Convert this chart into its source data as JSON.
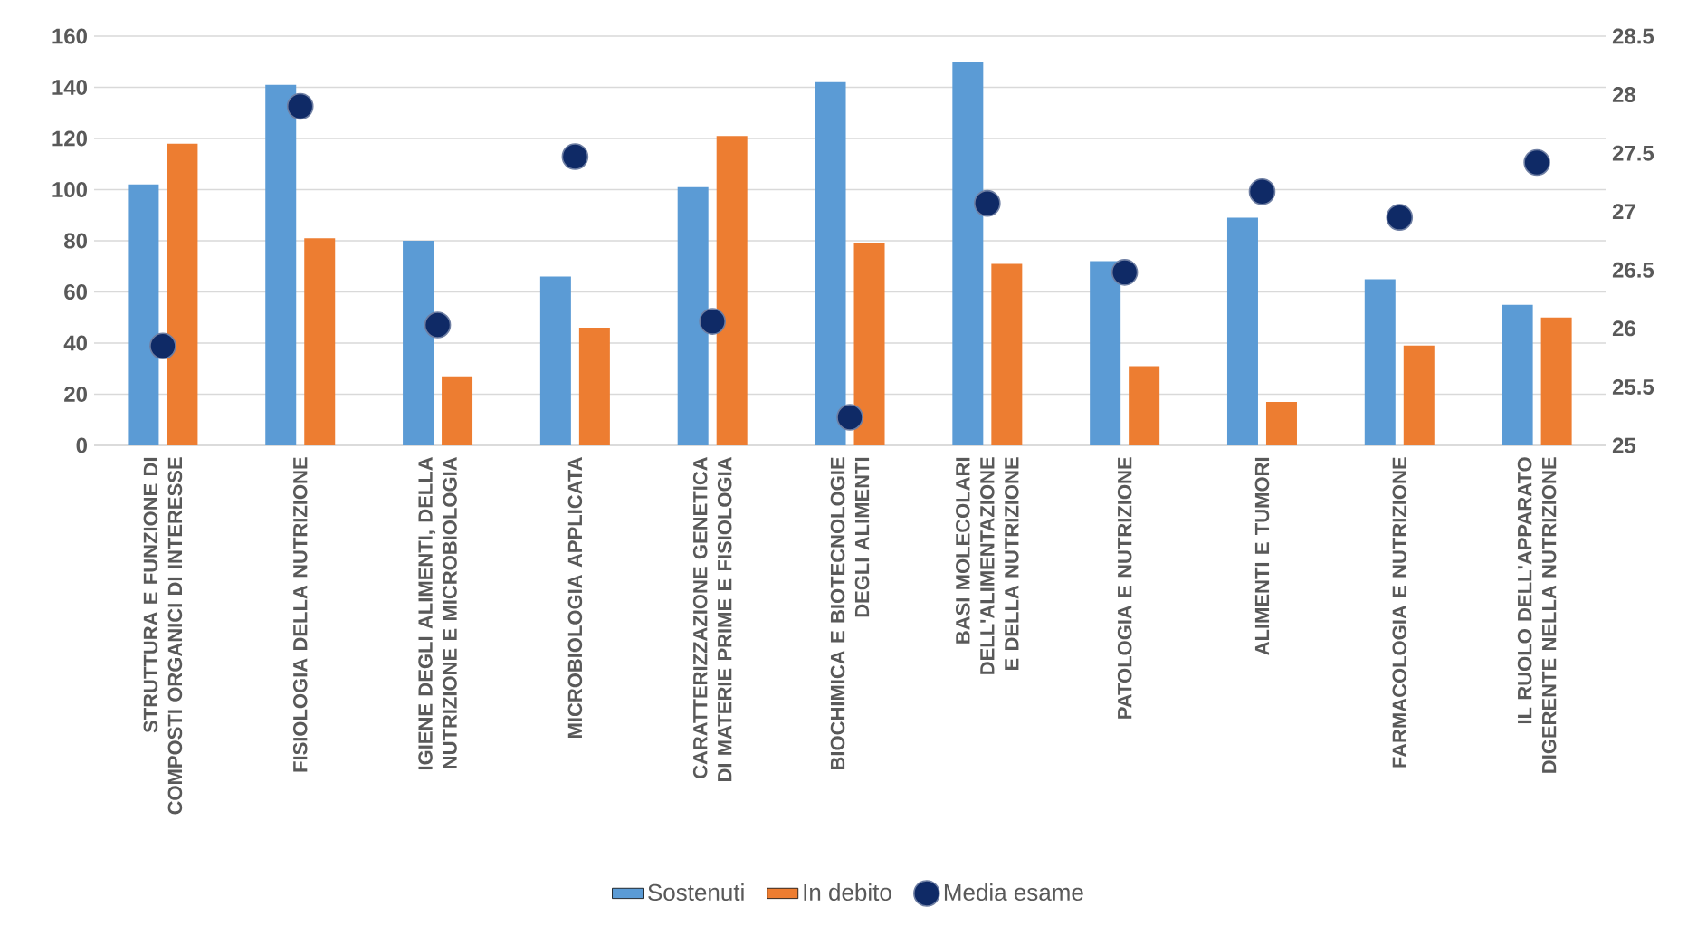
{
  "chart_data": {
    "type": "bar",
    "categories": [
      "STRUTTURA E FUNZIONE DI COMPOSTI ORGANICI DI INTERESSE",
      "FISIOLOGIA DELLA NUTRIZIONE",
      "IGIENE DEGLI ALIMENTI, DELLA NUTRIZIONE E MICROBIOLOGIA",
      "MICROBIOLOGIA APPLICATA",
      "CARATTERIZZAZIONE GENETICA DI MATERIE PRIME E FISIOLOGIA",
      "BIOCHIMICA E BIOTECNOLOGIE DEGLI ALIMENTI",
      "BASI MOLECOLARI DELL'ALIMENTAZIONE E DELLA NUTRIZIONE",
      "PATOLOGIA E NUTRIZIONE",
      "ALIMENTI E TUMORI",
      "FARMACOLOGIA E NUTRIZIONE",
      "IL RUOLO DELL'APPARATO DIGERENTE NELLA NUTRIZIONE"
    ],
    "series": [
      {
        "name": "Sostenuti",
        "color": "#5b9bd5",
        "values": [
          102,
          141,
          80,
          66,
          101,
          142,
          150,
          72,
          89,
          65,
          55
        ]
      },
      {
        "name": "In debito",
        "color": "#ed7d31",
        "values": [
          118,
          81,
          27,
          46,
          121,
          79,
          71,
          31,
          17,
          39,
          50
        ]
      },
      {
        "name": "Media esame",
        "type": "scatter",
        "axis": "y2",
        "marker": "circle",
        "color": "#0f2a66",
        "values": [
          25.85,
          27.9,
          26.03,
          27.47,
          26.06,
          25.24,
          27.07,
          26.48,
          27.17,
          26.95,
          27.42
        ]
      }
    ],
    "ylim": [
      0,
      160
    ],
    "yticks": [
      0,
      20,
      40,
      60,
      80,
      100,
      120,
      140,
      160
    ],
    "y2lim": [
      25,
      28.5
    ],
    "y2ticks": [
      25,
      25.5,
      26,
      26.5,
      27,
      27.5,
      28,
      28.5
    ],
    "grid": "y",
    "legend": "bottom"
  }
}
